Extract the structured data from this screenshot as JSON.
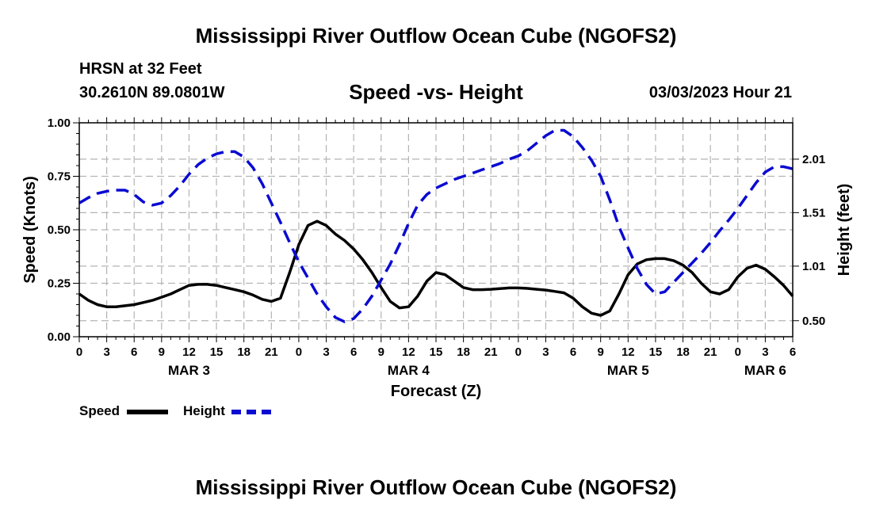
{
  "title": "Mississippi River Outflow Ocean Cube (NGOFS2)",
  "header": {
    "station": "HRSN at 32 Feet",
    "coords": "30.2610N  89.0801W",
    "subtitle": "Speed -vs- Height",
    "datetime": "03/03/2023 Hour 21"
  },
  "colors": {
    "speed": "#000000",
    "height": "#0a0ad2",
    "grid": "#b4b4b4"
  },
  "legend": {
    "speed": "Speed",
    "height": "Height"
  },
  "chart_data": {
    "type": "line",
    "title": "Speed -vs- Height",
    "xlabel": "Forecast (Z)",
    "ylabel": "Speed (Knots)",
    "y2label": "Height (feet)",
    "x_unit": "hours since MAR 3 00Z",
    "xlim": [
      0,
      78
    ],
    "ylim": [
      0,
      1
    ],
    "y2lim": [
      0.35,
      2.35
    ],
    "yticks": [
      0,
      0.25,
      0.5,
      0.75,
      1.0
    ],
    "ytick_labels": [
      "0.00",
      "0.25",
      "0.50",
      "0.75",
      "1.00"
    ],
    "y2ticks": [
      0.5,
      1.01,
      1.51,
      2.01
    ],
    "y2tick_labels": [
      "0.50",
      "1.01",
      "1.51",
      "2.01"
    ],
    "xticks": [
      0,
      3,
      6,
      9,
      12,
      15,
      18,
      21,
      24,
      27,
      30,
      33,
      36,
      39,
      42,
      45,
      48,
      51,
      54,
      57,
      60,
      63,
      66,
      69,
      72,
      75,
      78
    ],
    "xtick_labels": [
      "0",
      "3",
      "6",
      "9",
      "12",
      "15",
      "18",
      "21",
      "0",
      "3",
      "6",
      "9",
      "12",
      "15",
      "18",
      "21",
      "0",
      "3",
      "6",
      "9",
      "12",
      "15",
      "18",
      "21",
      "0",
      "3",
      "6"
    ],
    "date_labels": [
      {
        "label": "MAR 3",
        "x": 12
      },
      {
        "label": "MAR 4",
        "x": 36
      },
      {
        "label": "MAR 5",
        "x": 60
      },
      {
        "label": "MAR 6",
        "x": 75
      }
    ],
    "grid": true,
    "series": [
      {
        "name": "Speed",
        "axis": "left",
        "style": "solid",
        "x": [
          0,
          1,
          2,
          3,
          4,
          5,
          6,
          7,
          8,
          9,
          10,
          11,
          12,
          13,
          14,
          15,
          16,
          17,
          18,
          19,
          20,
          21,
          22,
          23,
          24,
          25,
          26,
          27,
          28,
          29,
          30,
          31,
          32,
          33,
          34,
          35,
          36,
          37,
          38,
          39,
          40,
          41,
          42,
          43,
          44,
          45,
          46,
          47,
          48,
          49,
          50,
          51,
          52,
          53,
          54,
          55,
          56,
          57,
          58,
          59,
          60,
          61,
          62,
          63,
          64,
          65,
          66,
          67,
          68,
          69,
          70,
          71,
          72,
          73,
          74,
          75,
          76,
          77,
          78
        ],
        "values": [
          0.2,
          0.17,
          0.15,
          0.14,
          0.14,
          0.145,
          0.15,
          0.16,
          0.17,
          0.185,
          0.2,
          0.22,
          0.24,
          0.245,
          0.245,
          0.24,
          0.23,
          0.22,
          0.21,
          0.195,
          0.175,
          0.165,
          0.18,
          0.3,
          0.43,
          0.52,
          0.54,
          0.52,
          0.48,
          0.45,
          0.41,
          0.36,
          0.3,
          0.23,
          0.165,
          0.135,
          0.14,
          0.19,
          0.26,
          0.3,
          0.29,
          0.26,
          0.23,
          0.22,
          0.22,
          0.222,
          0.225,
          0.228,
          0.228,
          0.226,
          0.222,
          0.218,
          0.212,
          0.205,
          0.18,
          0.14,
          0.11,
          0.1,
          0.12,
          0.2,
          0.29,
          0.34,
          0.36,
          0.365,
          0.365,
          0.355,
          0.335,
          0.3,
          0.25,
          0.21,
          0.2,
          0.22,
          0.28,
          0.32,
          0.335,
          0.315,
          0.28,
          0.24,
          0.19
        ]
      },
      {
        "name": "Height",
        "axis": "right",
        "style": "dashed",
        "x": [
          0,
          1,
          2,
          3,
          4,
          5,
          6,
          7,
          8,
          9,
          10,
          11,
          12,
          13,
          14,
          15,
          16,
          17,
          18,
          19,
          20,
          21,
          22,
          23,
          24,
          25,
          26,
          27,
          28,
          29,
          30,
          31,
          32,
          33,
          34,
          35,
          36,
          37,
          38,
          39,
          40,
          41,
          42,
          43,
          44,
          45,
          46,
          47,
          48,
          49,
          50,
          51,
          52,
          53,
          54,
          55,
          56,
          57,
          58,
          59,
          60,
          61,
          62,
          63,
          64,
          65,
          66,
          67,
          68,
          69,
          70,
          71,
          72,
          73,
          74,
          75,
          76,
          77,
          78
        ],
        "values": [
          1.6,
          1.65,
          1.69,
          1.71,
          1.72,
          1.72,
          1.68,
          1.61,
          1.58,
          1.6,
          1.67,
          1.76,
          1.87,
          1.96,
          2.02,
          2.06,
          2.08,
          2.08,
          2.03,
          1.93,
          1.78,
          1.6,
          1.42,
          1.23,
          1.05,
          0.9,
          0.75,
          0.63,
          0.53,
          0.49,
          0.52,
          0.61,
          0.73,
          0.88,
          1.03,
          1.21,
          1.41,
          1.58,
          1.68,
          1.74,
          1.78,
          1.82,
          1.85,
          1.88,
          1.91,
          1.94,
          1.97,
          2.01,
          2.04,
          2.09,
          2.16,
          2.23,
          2.28,
          2.28,
          2.22,
          2.12,
          2.0,
          1.85,
          1.63,
          1.38,
          1.18,
          0.99,
          0.84,
          0.75,
          0.77,
          0.86,
          0.95,
          1.04,
          1.13,
          1.23,
          1.34,
          1.44,
          1.55,
          1.67,
          1.79,
          1.89,
          1.94,
          1.94,
          1.92
        ]
      }
    ]
  }
}
